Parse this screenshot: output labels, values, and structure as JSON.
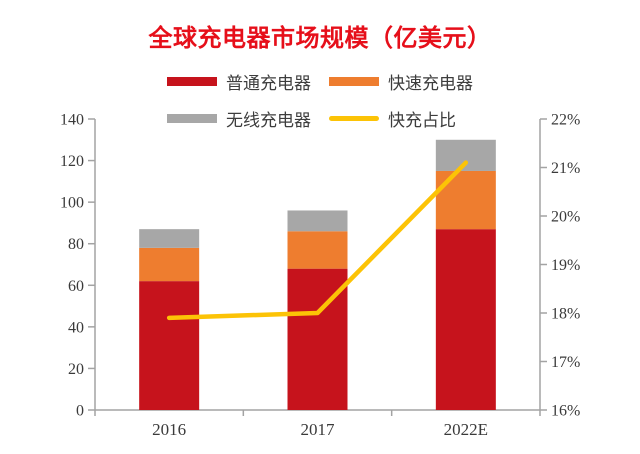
{
  "title": "全球充电器市场规模（亿美元）",
  "colors": {
    "title": "#e60f1a",
    "ordinary": "#c6131c",
    "fast": "#ee7d2f",
    "wireless": "#a7a7a7",
    "line": "#fcc306",
    "axis": "#a3a3a3",
    "tick_text": "#3a3a3a"
  },
  "legend": [
    {
      "label": "普通充电器",
      "type": "bar",
      "color": "#c6131c"
    },
    {
      "label": "快速充电器",
      "type": "bar",
      "color": "#ee7d2f"
    },
    {
      "label": "无线充电器",
      "type": "bar",
      "color": "#a7a7a7"
    },
    {
      "label": "快充占比",
      "type": "line",
      "color": "#fcc306"
    }
  ],
  "chart_data": {
    "type": "bar",
    "subtype": "stacked-bars-with-right-axis-line",
    "title": "全球充电器市场规模（亿美元）",
    "categories": [
      "2016",
      "2017",
      "2022E"
    ],
    "bar_series": [
      {
        "name": "普通充电器",
        "values": [
          62,
          68,
          87
        ],
        "color": "#c6131c"
      },
      {
        "name": "快速充电器",
        "values": [
          16,
          18,
          28
        ],
        "color": "#ee7d2f"
      },
      {
        "name": "无线充电器",
        "values": [
          9,
          10,
          15
        ],
        "color": "#a7a7a7"
      }
    ],
    "stack_totals": [
      87,
      96,
      130
    ],
    "line_series": {
      "name": "快充占比",
      "axis": "right",
      "values_percent": [
        17.9,
        18.0,
        21.1
      ],
      "color": "#fcc306"
    },
    "left_axis": {
      "min": 0,
      "max": 140,
      "step": 20,
      "tick_labels": [
        "0",
        "20",
        "40",
        "60",
        "80",
        "100",
        "120",
        "140"
      ]
    },
    "right_axis": {
      "min": 16,
      "max": 22,
      "step": 1,
      "unit": "%",
      "tick_labels": [
        "16%",
        "17%",
        "18%",
        "19%",
        "20%",
        "21%",
        "22%"
      ]
    },
    "legend_position": "top",
    "grid": false
  }
}
